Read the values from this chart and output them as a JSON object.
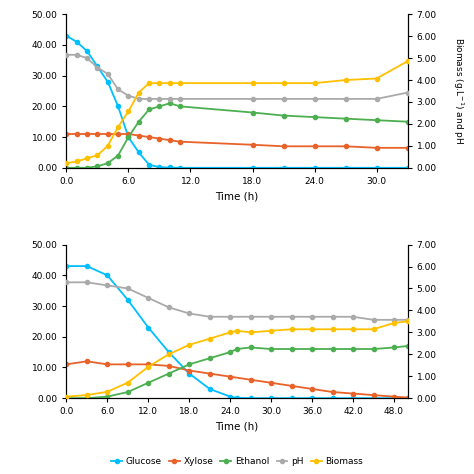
{
  "top": {
    "glucose_x": [
      0,
      1,
      2,
      3,
      4,
      5,
      6,
      7,
      8,
      9,
      10,
      11,
      18,
      21,
      24,
      27,
      30,
      33
    ],
    "glucose_y": [
      43,
      41,
      38,
      33,
      28,
      20,
      10,
      5,
      1,
      0.2,
      0.1,
      0.0,
      0.0,
      0.0,
      0.0,
      0.0,
      0.0,
      0.0
    ],
    "xylose_x": [
      0,
      1,
      2,
      3,
      4,
      5,
      6,
      7,
      8,
      9,
      10,
      11,
      18,
      21,
      24,
      27,
      30,
      33
    ],
    "xylose_y": [
      11,
      11,
      11,
      11,
      11,
      11,
      11,
      10.5,
      10,
      9.5,
      9,
      8.5,
      7.5,
      7,
      7,
      7,
      6.5,
      6.5
    ],
    "ethanol_x": [
      0,
      1,
      2,
      3,
      4,
      5,
      6,
      7,
      8,
      9,
      10,
      11,
      18,
      21,
      24,
      27,
      30,
      33
    ],
    "ethanol_y": [
      0,
      0,
      0,
      0.5,
      1.5,
      4,
      10,
      15,
      19,
      20,
      21,
      20,
      18,
      17,
      16.5,
      16,
      15.5,
      15
    ],
    "ph_x": [
      0,
      1,
      2,
      3,
      4,
      5,
      6,
      7,
      8,
      9,
      10,
      11,
      18,
      21,
      24,
      27,
      30,
      33
    ],
    "ph_y": [
      5.15,
      5.15,
      5.0,
      4.57,
      4.28,
      3.57,
      3.29,
      3.14,
      3.14,
      3.14,
      3.14,
      3.14,
      3.14,
      3.14,
      3.14,
      3.14,
      3.14,
      3.43
    ],
    "biomass_x": [
      0,
      1,
      2,
      3,
      4,
      5,
      6,
      7,
      8,
      9,
      10,
      11,
      18,
      21,
      24,
      27,
      30,
      33
    ],
    "biomass_y": [
      0.21,
      0.29,
      0.43,
      0.57,
      1.0,
      1.86,
      2.57,
      3.43,
      3.86,
      3.86,
      3.86,
      3.86,
      3.86,
      3.86,
      3.86,
      4.0,
      4.07,
      4.86
    ],
    "ylim_left": [
      0,
      50
    ],
    "ylim_right": [
      0,
      7
    ],
    "xlim": [
      0,
      33
    ],
    "xticks": [
      0.0,
      6.0,
      12.0,
      18.0,
      24.0,
      30.0
    ],
    "yticks_left": [
      0,
      10,
      20,
      30,
      40,
      50
    ],
    "yticks_right": [
      0,
      1,
      2,
      3,
      4,
      5,
      6,
      7
    ],
    "xlabel": "Time (h)",
    "ylabel_right": "Biomass (g.L$^{-1}$) and pH"
  },
  "bottom": {
    "glucose_x": [
      0,
      3,
      6,
      9,
      12,
      15,
      18,
      21,
      24,
      25,
      27,
      30,
      33,
      36,
      39,
      42,
      45,
      48,
      50
    ],
    "glucose_y": [
      43,
      43,
      40,
      32,
      23,
      15,
      8,
      3,
      0.5,
      0.1,
      0.0,
      0.0,
      0.0,
      0.0,
      0.0,
      0.0,
      0.0,
      0.0,
      0.0
    ],
    "xylose_x": [
      0,
      3,
      6,
      9,
      12,
      15,
      18,
      21,
      24,
      27,
      30,
      33,
      36,
      39,
      42,
      45,
      48,
      50
    ],
    "xylose_y": [
      11,
      12,
      11,
      11,
      11,
      10.5,
      9,
      8,
      7,
      6,
      5,
      4,
      3,
      2,
      1.5,
      1,
      0.5,
      0.2
    ],
    "ethanol_x": [
      0,
      3,
      6,
      9,
      12,
      15,
      18,
      21,
      24,
      25,
      27,
      30,
      33,
      36,
      39,
      42,
      45,
      48,
      50
    ],
    "ethanol_y": [
      0,
      0,
      0.5,
      2,
      5,
      8,
      11,
      13,
      15,
      16,
      16.5,
      16,
      16,
      16,
      16,
      16,
      16,
      16.5,
      17
    ],
    "ph_x": [
      0,
      3,
      6,
      9,
      12,
      15,
      18,
      21,
      24,
      27,
      30,
      33,
      36,
      39,
      42,
      45,
      48,
      50
    ],
    "ph_y": [
      5.28,
      5.28,
      5.14,
      5.0,
      4.57,
      4.14,
      3.86,
      3.71,
      3.71,
      3.71,
      3.71,
      3.71,
      3.71,
      3.71,
      3.71,
      3.57,
      3.57,
      3.57
    ],
    "biomass_x": [
      0,
      3,
      6,
      9,
      12,
      15,
      18,
      21,
      24,
      25,
      27,
      30,
      33,
      36,
      39,
      42,
      45,
      48,
      50
    ],
    "biomass_y": [
      0.07,
      0.14,
      0.29,
      0.71,
      1.43,
      2.0,
      2.43,
      2.71,
      3.0,
      3.07,
      3.0,
      3.07,
      3.14,
      3.14,
      3.14,
      3.14,
      3.14,
      3.43,
      3.5
    ],
    "ylim_left": [
      0,
      50
    ],
    "ylim_right": [
      0,
      7
    ],
    "xlim": [
      0,
      50
    ],
    "xticks": [
      0.0,
      6.0,
      12.0,
      18.0,
      24.0,
      30.0,
      36.0,
      42.0,
      48.0
    ],
    "yticks_left": [
      0,
      10,
      20,
      30,
      40,
      50
    ],
    "yticks_right": [
      0,
      1,
      2,
      3,
      4,
      5,
      6,
      7
    ],
    "xlabel": "Time (h)",
    "ylabel_right": ""
  },
  "colors": {
    "glucose": "#00BFFF",
    "xylose": "#E8622A",
    "ethanol": "#4CAF50",
    "ph": "#AAAAAA",
    "biomass": "#FFC000"
  },
  "marker": "o",
  "markersize": 3.0,
  "linewidth": 1.3,
  "tick_fontsize": 6.5,
  "label_fontsize": 7.5
}
